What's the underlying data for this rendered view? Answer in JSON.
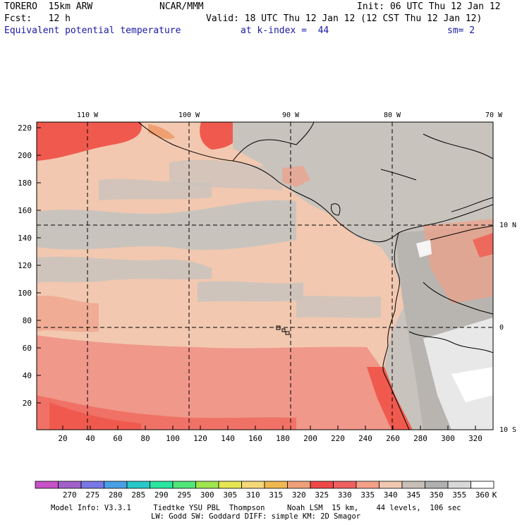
{
  "header": {
    "model": "TORERO  15km ARW",
    "org": "NCAR/MMM",
    "init": "Init: 06 UTC Thu 12 Jan 12",
    "fcst": "Fcst:   12 h",
    "valid": "Valid: 18 UTC Thu 12 Jan 12 (12 CST Thu 12 Jan 12)",
    "field": "Equivalent potential temperature",
    "level": "at k-index =  44",
    "smooth": "sm= 2"
  },
  "axes": {
    "lon_labels": [
      "110 W",
      "100 W",
      "90 W",
      "80 W",
      "70 W"
    ],
    "lat_labels": [
      "10 N",
      "0",
      "10 S"
    ],
    "x_ticks": [
      "20",
      "40",
      "60",
      "80",
      "100",
      "120",
      "140",
      "160",
      "180",
      "200",
      "220",
      "240",
      "260",
      "280",
      "300",
      "320"
    ],
    "y_ticks": [
      "220",
      "200",
      "180",
      "160",
      "140",
      "120",
      "100",
      "80",
      "60",
      "40",
      "20"
    ]
  },
  "colorbar": {
    "labels": [
      "270",
      "275",
      "280",
      "285",
      "290",
      "295",
      "300",
      "305",
      "310",
      "315",
      "320",
      "325",
      "330",
      "335",
      "340",
      "345",
      "350",
      "355",
      "360"
    ],
    "unit": "K",
    "colors": [
      "#c850c8",
      "#a060c8",
      "#7878e6",
      "#4aa0e6",
      "#28c8c8",
      "#28e6a0",
      "#50e678",
      "#a0e650",
      "#e6e650",
      "#f5d878",
      "#f0b850",
      "#f0a078",
      "#f04848",
      "#f06060",
      "#f5a088",
      "#f0c8b0",
      "#c8c0b8",
      "#b0b0b0",
      "#d8d8d8",
      "#ffffff"
    ]
  },
  "footer": {
    "line1": "Model Info: V3.3.1     Tiedtke YSU PBL  Thompson     Noah LSM  15 km,    44 levels,  106 sec",
    "line2": "LW: Godd SW: Goddard DIFF: simple KM: 2D Smagor"
  }
}
